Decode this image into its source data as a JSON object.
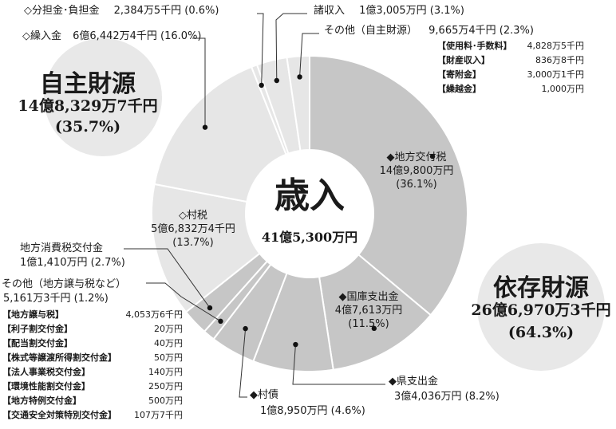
{
  "chart_data": {
    "type": "donut",
    "center": {
      "title": "歳入",
      "total": "41億5,300万円"
    },
    "series": [
      {
        "name": "地方交付税",
        "label": "◆地方交付税",
        "value_text": "14億9,800万円",
        "pct_text": "(36.1%)",
        "pct": 36.1,
        "group": "dependent",
        "color": "#c6c6c6"
      },
      {
        "name": "国庫支出金",
        "label": "◆国庫支出金",
        "value_text": "4億7,613万円",
        "pct_text": "(11.5%)",
        "pct": 11.5,
        "group": "dependent",
        "color": "#c6c6c6"
      },
      {
        "name": "県支出金",
        "label": "◆県支出金",
        "value_text": "3億4,036万円",
        "pct_text": "(8.2%)",
        "pct": 8.2,
        "group": "dependent",
        "color": "#c6c6c6"
      },
      {
        "name": "村債",
        "label": "◆村債",
        "value_text": "1億8,950万円",
        "pct_text": "(4.6%)",
        "pct": 4.6,
        "group": "dependent",
        "color": "#c6c6c6"
      },
      {
        "name": "その他（地方譲与税など）",
        "label": "その他（地方譲与税など）",
        "value_text": "5,161万3千円",
        "pct_text": "(1.2%)",
        "pct": 1.2,
        "group": "dependent",
        "color": "#c6c6c6"
      },
      {
        "name": "地方消費税交付金",
        "label": "地方消費税交付金",
        "value_text": "1億1,410万円",
        "pct_text": "(2.7%)",
        "pct": 2.7,
        "group": "dependent",
        "color": "#c6c6c6"
      },
      {
        "name": "村税",
        "label": "◇村税",
        "value_text": "5億6,832万4千円",
        "pct_text": "(13.7%)",
        "pct": 13.7,
        "group": "independent",
        "color": "#e6e6e6"
      },
      {
        "name": "繰入金",
        "label": "◇繰入金",
        "value_text": "6億6,442万4千円",
        "pct_text": "(16.0%)",
        "pct": 16.0,
        "group": "independent",
        "color": "#e6e6e6"
      },
      {
        "name": "分担金・負担金",
        "label": "◇分担金･負担金",
        "value_text": "2,384万5千円",
        "pct_text": "(0.6%)",
        "pct": 0.6,
        "group": "independent",
        "color": "#e6e6e6"
      },
      {
        "name": "諸収入",
        "label": "諸収入",
        "value_text": "1億3,005万円",
        "pct_text": "(3.1%)",
        "pct": 3.1,
        "group": "independent",
        "color": "#e6e6e6"
      },
      {
        "name": "その他（自主財源）",
        "label": "その他（自主財源）",
        "value_text": "9,665万4千円",
        "pct_text": "(2.3%)",
        "pct": 2.3,
        "group": "independent",
        "color": "#e6e6e6"
      }
    ],
    "groups": {
      "independent": {
        "title": "自主財源",
        "value": "14億8,329万7千円",
        "pct": "(35.7%)"
      },
      "dependent": {
        "title": "依存財源",
        "value": "26億6,970万3千円",
        "pct": "(64.3%)"
      }
    },
    "other_independent_breakdown": [
      {
        "label": "【使用料･手数料】",
        "value": "4,828万5千円"
      },
      {
        "label": "【財産収入】",
        "value": "836万8千円"
      },
      {
        "label": "【寄附金】",
        "value": "3,000万1千円"
      },
      {
        "label": "【繰越金】",
        "value": "1,000万円"
      }
    ],
    "other_dependent_breakdown": [
      {
        "label": "【地方譲与税】",
        "value": "4,053万6千円"
      },
      {
        "label": "【利子割交付金】",
        "value": "20万円"
      },
      {
        "label": "【配当割交付金】",
        "value": "40万円"
      },
      {
        "label": "【株式等譲渡所得割交付金】",
        "value": "50万円"
      },
      {
        "label": "【法人事業税交付金】",
        "value": "140万円"
      },
      {
        "label": "【環境性能割交付金】",
        "value": "250万円"
      },
      {
        "label": "【地方特例交付金】",
        "value": "500万円"
      },
      {
        "label": "【交通安全対策特別交付金】",
        "value": "107万7千円"
      }
    ]
  }
}
